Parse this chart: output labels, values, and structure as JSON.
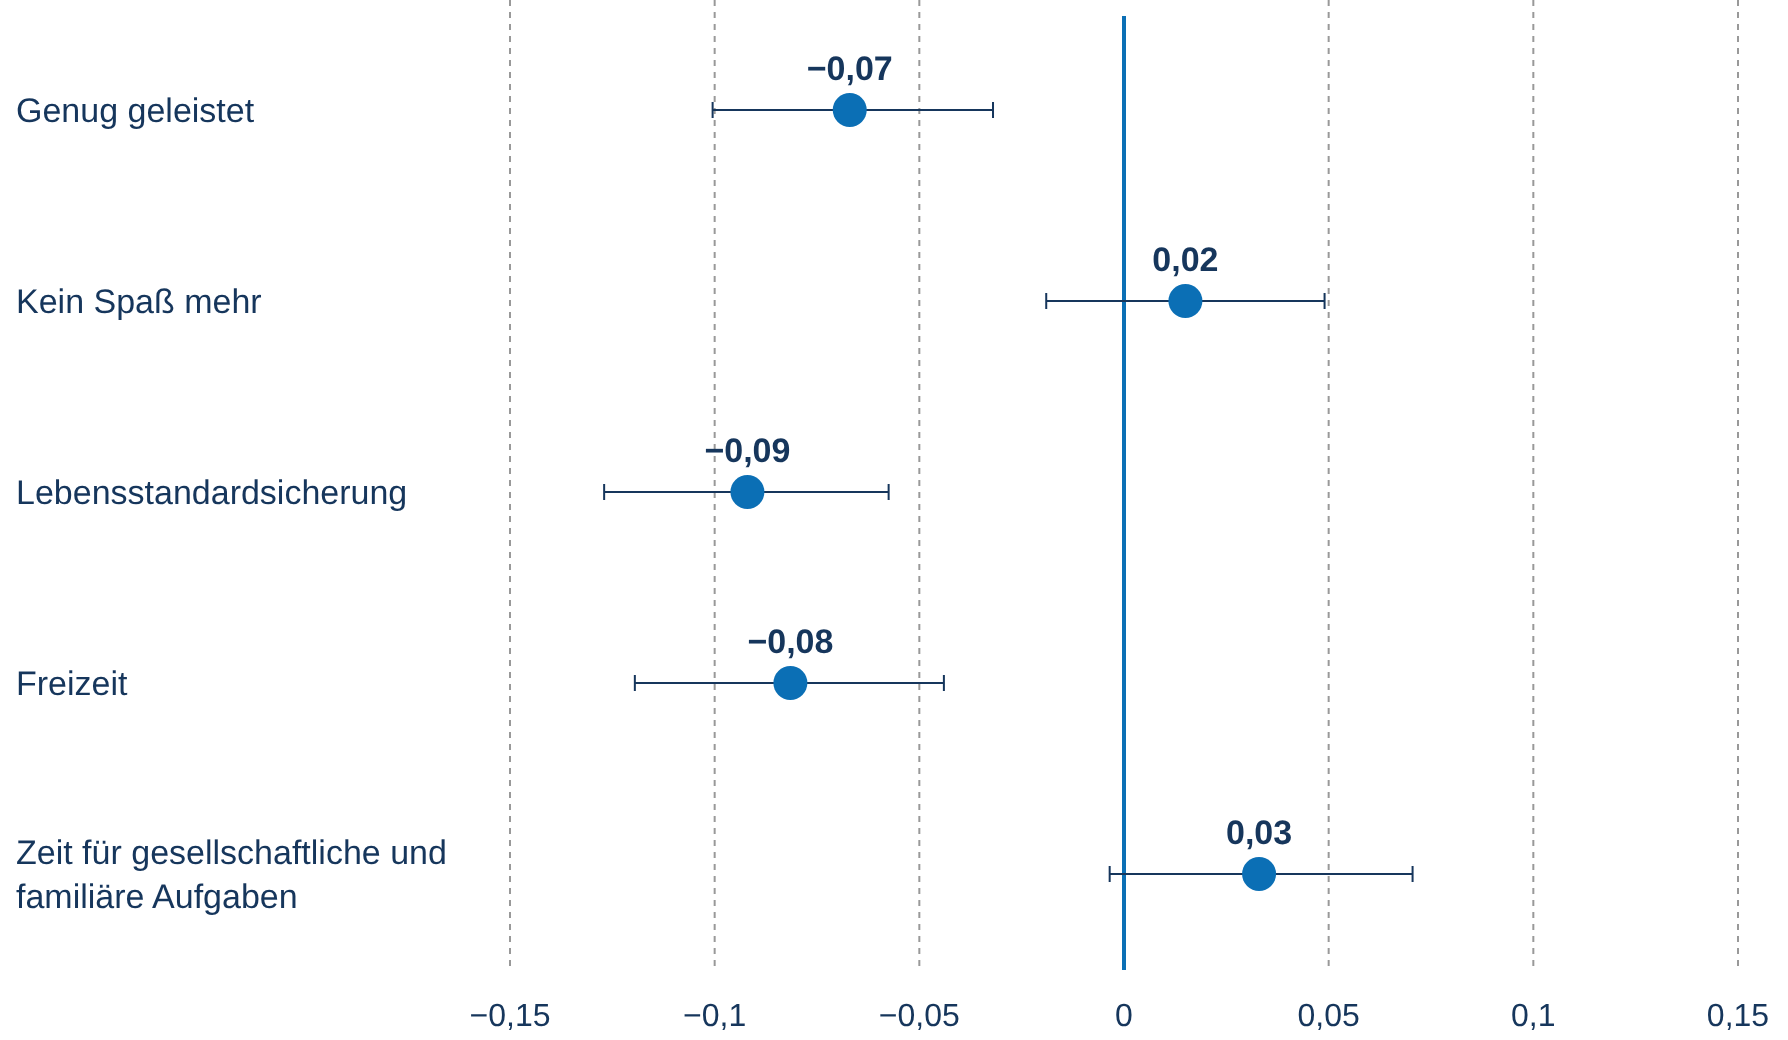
{
  "chart_data": {
    "type": "scatter",
    "orientation": "horizontal",
    "categories": [
      "Genug geleistet",
      "Kein Spaß mehr",
      "Lebensstandardsicherung",
      "Freizeit",
      "Zeit für gesellschaftliche und familiäre Aufgaben"
    ],
    "values": [
      -0.067,
      0.015,
      -0.092,
      -0.0815,
      0.033
    ],
    "errors": [
      [
        -0.1005,
        -0.032
      ],
      [
        -0.019,
        0.049
      ],
      [
        -0.127,
        -0.0575
      ],
      [
        -0.1195,
        -0.044
      ],
      [
        -0.0035,
        0.0705
      ]
    ],
    "value_labels": [
      "−0,07",
      "0,02",
      "−0,09",
      "−0,08",
      "0,03"
    ],
    "color": "#0b6fb5",
    "marker": "circle",
    "grid": "x",
    "xlim": [
      -0.15,
      0.15
    ],
    "xticks": [
      {
        "value": -0.15,
        "label": "−0,15"
      },
      {
        "value": -0.1,
        "label": "−0,1"
      },
      {
        "value": -0.05,
        "label": "−0,05"
      },
      0,
      {
        "value": 0.05,
        "label": "0,05"
      },
      {
        "value": 0.1,
        "label": "0,1"
      },
      {
        "value": 0.15,
        "label": "0,15"
      }
    ],
    "ref_lines": [
      {
        "axis": "x",
        "value": 0,
        "color": "#0b6fb5",
        "line_style": "solid"
      }
    ]
  }
}
